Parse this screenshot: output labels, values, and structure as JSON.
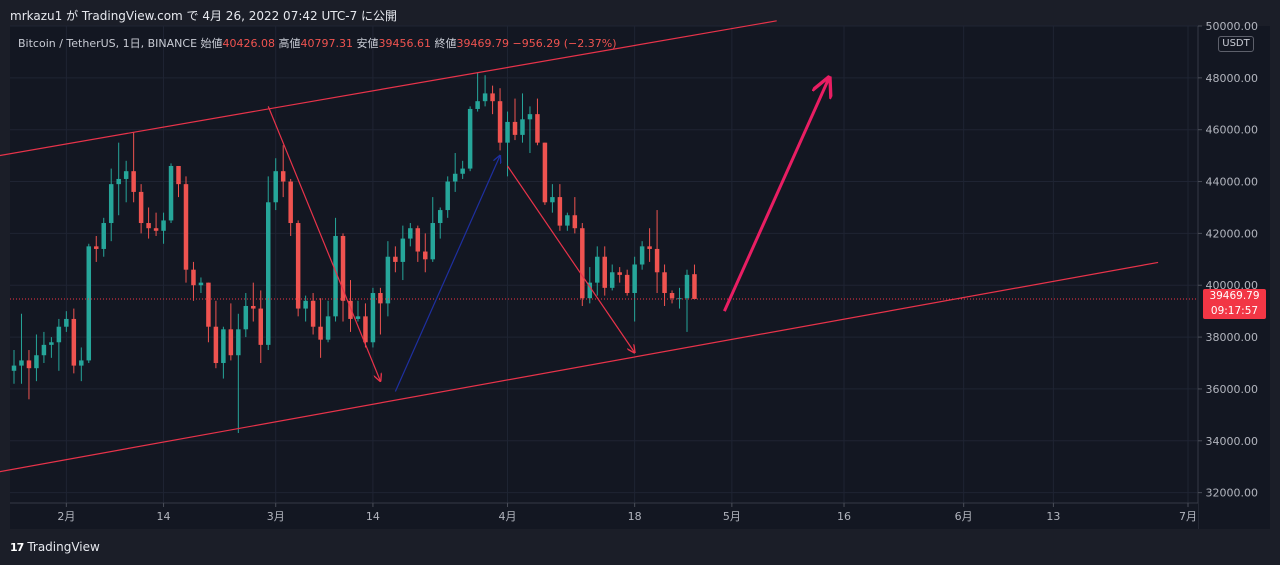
{
  "header": {
    "published_by": "mrkazu1 が TradingView.com で 4月 26, 2022 07:42 UTC-7 に公開"
  },
  "legend": {
    "symbol": "Bitcoin / TetherUS, 1日, BINANCE",
    "open_label": "始値",
    "open_value": "40426.08",
    "high_label": "高値",
    "high_value": "40797.31",
    "low_label": "安値",
    "low_value": "39456.61",
    "close_label": "終値",
    "close_value": "39469.79",
    "change": "−956.29 (−2.37%)"
  },
  "axis": {
    "unit": "USDT",
    "last_price": "39469.79",
    "countdown": "09:17:57"
  },
  "footer": {
    "brand": "TradingView",
    "logo_glyph": "17"
  },
  "colors": {
    "up": "#26a69a",
    "down": "#ef5350",
    "channel": "#e8334a",
    "blue_arrow": "#1e2fa0",
    "big_arrow": "#e91e63",
    "price_label": "#f23645"
  },
  "chart_data": {
    "type": "candlestick",
    "x_start": "2022-01-25",
    "x_end": "2022-07-01",
    "ylim": [
      31600,
      50000
    ],
    "y_ticks": [
      "32000.00",
      "34000.00",
      "36000.00",
      "38000.00",
      "40000.00",
      "42000.00",
      "44000.00",
      "46000.00",
      "48000.00",
      "50000.00"
    ],
    "x_ticks": [
      {
        "date": "2022-02-01",
        "label": "2月"
      },
      {
        "date": "2022-02-14",
        "label": "14"
      },
      {
        "date": "2022-03-01",
        "label": "3月"
      },
      {
        "date": "2022-03-14",
        "label": "14"
      },
      {
        "date": "2022-04-01",
        "label": "4月"
      },
      {
        "date": "2022-04-18",
        "label": "18"
      },
      {
        "date": "2022-05-01",
        "label": "5月"
      },
      {
        "date": "2022-05-16",
        "label": "16"
      },
      {
        "date": "2022-06-01",
        "label": "6月"
      },
      {
        "date": "2022-06-13",
        "label": "13"
      },
      {
        "date": "2022-07-01",
        "label": "7月"
      }
    ],
    "candles": [
      {
        "d": "2022-01-25",
        "o": 36700,
        "h": 37500,
        "l": 36200,
        "c": 36900
      },
      {
        "d": "2022-01-26",
        "o": 36900,
        "h": 38900,
        "l": 36200,
        "c": 37100
      },
      {
        "d": "2022-01-27",
        "o": 37100,
        "h": 37500,
        "l": 35600,
        "c": 36800
      },
      {
        "d": "2022-01-28",
        "o": 36800,
        "h": 38100,
        "l": 36300,
        "c": 37300
      },
      {
        "d": "2022-01-29",
        "o": 37300,
        "h": 38200,
        "l": 37000,
        "c": 37700
      },
      {
        "d": "2022-01-30",
        "o": 37700,
        "h": 38000,
        "l": 37200,
        "c": 37800
      },
      {
        "d": "2022-01-31",
        "o": 37800,
        "h": 38700,
        "l": 36700,
        "c": 38400
      },
      {
        "d": "2022-02-01",
        "o": 38400,
        "h": 39000,
        "l": 38200,
        "c": 38700
      },
      {
        "d": "2022-02-02",
        "o": 38700,
        "h": 39100,
        "l": 36600,
        "c": 36900
      },
      {
        "d": "2022-02-03",
        "o": 36900,
        "h": 37600,
        "l": 36300,
        "c": 37100
      },
      {
        "d": "2022-02-04",
        "o": 37100,
        "h": 41600,
        "l": 37000,
        "c": 41500
      },
      {
        "d": "2022-02-05",
        "o": 41500,
        "h": 41900,
        "l": 40900,
        "c": 41400
      },
      {
        "d": "2022-02-06",
        "o": 41400,
        "h": 42600,
        "l": 41100,
        "c": 42400
      },
      {
        "d": "2022-02-07",
        "o": 42400,
        "h": 44500,
        "l": 41700,
        "c": 43900
      },
      {
        "d": "2022-02-08",
        "o": 43900,
        "h": 45500,
        "l": 42700,
        "c": 44100
      },
      {
        "d": "2022-02-09",
        "o": 44100,
        "h": 44800,
        "l": 43200,
        "c": 44400
      },
      {
        "d": "2022-02-10",
        "o": 44400,
        "h": 45900,
        "l": 43200,
        "c": 43600
      },
      {
        "d": "2022-02-11",
        "o": 43600,
        "h": 43900,
        "l": 42000,
        "c": 42400
      },
      {
        "d": "2022-02-12",
        "o": 42400,
        "h": 43000,
        "l": 41800,
        "c": 42200
      },
      {
        "d": "2022-02-13",
        "o": 42200,
        "h": 42800,
        "l": 41900,
        "c": 42100
      },
      {
        "d": "2022-02-14",
        "o": 42100,
        "h": 42800,
        "l": 41600,
        "c": 42500
      },
      {
        "d": "2022-02-15",
        "o": 42500,
        "h": 44700,
        "l": 42400,
        "c": 44600
      },
      {
        "d": "2022-02-16",
        "o": 44600,
        "h": 44600,
        "l": 43400,
        "c": 43900
      },
      {
        "d": "2022-02-17",
        "o": 43900,
        "h": 44200,
        "l": 40100,
        "c": 40600
      },
      {
        "d": "2022-02-18",
        "o": 40600,
        "h": 40900,
        "l": 39400,
        "c": 40000
      },
      {
        "d": "2022-02-19",
        "o": 40000,
        "h": 40300,
        "l": 39700,
        "c": 40100
      },
      {
        "d": "2022-02-20",
        "o": 40100,
        "h": 40100,
        "l": 37800,
        "c": 38400
      },
      {
        "d": "2022-02-21",
        "o": 38400,
        "h": 39400,
        "l": 36800,
        "c": 37000
      },
      {
        "d": "2022-02-22",
        "o": 37000,
        "h": 38400,
        "l": 36400,
        "c": 38300
      },
      {
        "d": "2022-02-23",
        "o": 38300,
        "h": 39300,
        "l": 37100,
        "c": 37300
      },
      {
        "d": "2022-02-24",
        "o": 37300,
        "h": 38900,
        "l": 34300,
        "c": 38300
      },
      {
        "d": "2022-02-25",
        "o": 38300,
        "h": 39700,
        "l": 38000,
        "c": 39200
      },
      {
        "d": "2022-02-26",
        "o": 39200,
        "h": 40100,
        "l": 38600,
        "c": 39100
      },
      {
        "d": "2022-02-27",
        "o": 39100,
        "h": 39800,
        "l": 37000,
        "c": 37700
      },
      {
        "d": "2022-02-28",
        "o": 37700,
        "h": 44200,
        "l": 37500,
        "c": 43200
      },
      {
        "d": "2022-03-01",
        "o": 43200,
        "h": 44900,
        "l": 42900,
        "c": 44400
      },
      {
        "d": "2022-03-02",
        "o": 44400,
        "h": 45400,
        "l": 43400,
        "c": 44000
      },
      {
        "d": "2022-03-03",
        "o": 44000,
        "h": 44100,
        "l": 41900,
        "c": 42400
      },
      {
        "d": "2022-03-04",
        "o": 42400,
        "h": 42500,
        "l": 38800,
        "c": 39100
      },
      {
        "d": "2022-03-05",
        "o": 39100,
        "h": 39600,
        "l": 38600,
        "c": 39400
      },
      {
        "d": "2022-03-06",
        "o": 39400,
        "h": 39700,
        "l": 38100,
        "c": 38400
      },
      {
        "d": "2022-03-07",
        "o": 38400,
        "h": 39500,
        "l": 37200,
        "c": 37900
      },
      {
        "d": "2022-03-08",
        "o": 37900,
        "h": 39400,
        "l": 37800,
        "c": 38800
      },
      {
        "d": "2022-03-09",
        "o": 38800,
        "h": 42600,
        "l": 38600,
        "c": 41900
      },
      {
        "d": "2022-03-10",
        "o": 41900,
        "h": 42000,
        "l": 38600,
        "c": 39400
      },
      {
        "d": "2022-03-11",
        "o": 39400,
        "h": 40200,
        "l": 38200,
        "c": 38700
      },
      {
        "d": "2022-03-12",
        "o": 38700,
        "h": 39400,
        "l": 38600,
        "c": 38800
      },
      {
        "d": "2022-03-13",
        "o": 38800,
        "h": 39300,
        "l": 37600,
        "c": 37800
      },
      {
        "d": "2022-03-14",
        "o": 37800,
        "h": 39900,
        "l": 37600,
        "c": 39700
      },
      {
        "d": "2022-03-15",
        "o": 39700,
        "h": 39900,
        "l": 38100,
        "c": 39300
      },
      {
        "d": "2022-03-16",
        "o": 39300,
        "h": 41700,
        "l": 38800,
        "c": 41100
      },
      {
        "d": "2022-03-17",
        "o": 41100,
        "h": 41500,
        "l": 40500,
        "c": 40900
      },
      {
        "d": "2022-03-18",
        "o": 40900,
        "h": 42300,
        "l": 40200,
        "c": 41800
      },
      {
        "d": "2022-03-19",
        "o": 41800,
        "h": 42400,
        "l": 41500,
        "c": 42200
      },
      {
        "d": "2022-03-20",
        "o": 42200,
        "h": 42300,
        "l": 40900,
        "c": 41300
      },
      {
        "d": "2022-03-21",
        "o": 41300,
        "h": 42000,
        "l": 40500,
        "c": 41000
      },
      {
        "d": "2022-03-22",
        "o": 41000,
        "h": 43400,
        "l": 40900,
        "c": 42400
      },
      {
        "d": "2022-03-23",
        "o": 42400,
        "h": 43000,
        "l": 41800,
        "c": 42900
      },
      {
        "d": "2022-03-24",
        "o": 42900,
        "h": 44200,
        "l": 42600,
        "c": 44000
      },
      {
        "d": "2022-03-25",
        "o": 44000,
        "h": 45100,
        "l": 43600,
        "c": 44300
      },
      {
        "d": "2022-03-26",
        "o": 44300,
        "h": 44800,
        "l": 44100,
        "c": 44500
      },
      {
        "d": "2022-03-27",
        "o": 44500,
        "h": 46900,
        "l": 44400,
        "c": 46800
      },
      {
        "d": "2022-03-28",
        "o": 46800,
        "h": 48200,
        "l": 46700,
        "c": 47100
      },
      {
        "d": "2022-03-29",
        "o": 47100,
        "h": 48100,
        "l": 46900,
        "c": 47400
      },
      {
        "d": "2022-03-30",
        "o": 47400,
        "h": 47700,
        "l": 46600,
        "c": 47100
      },
      {
        "d": "2022-03-31",
        "o": 47100,
        "h": 47600,
        "l": 45200,
        "c": 45500
      },
      {
        "d": "2022-04-01",
        "o": 45500,
        "h": 46700,
        "l": 44200,
        "c": 46300
      },
      {
        "d": "2022-04-02",
        "o": 46300,
        "h": 47200,
        "l": 45600,
        "c": 45800
      },
      {
        "d": "2022-04-03",
        "o": 45800,
        "h": 47400,
        "l": 45500,
        "c": 46400
      },
      {
        "d": "2022-04-04",
        "o": 46400,
        "h": 46900,
        "l": 45100,
        "c": 46600
      },
      {
        "d": "2022-04-05",
        "o": 46600,
        "h": 47200,
        "l": 45400,
        "c": 45500
      },
      {
        "d": "2022-04-06",
        "o": 45500,
        "h": 45500,
        "l": 43100,
        "c": 43200
      },
      {
        "d": "2022-04-07",
        "o": 43200,
        "h": 43900,
        "l": 42800,
        "c": 43400
      },
      {
        "d": "2022-04-08",
        "o": 43400,
        "h": 43900,
        "l": 42100,
        "c": 42300
      },
      {
        "d": "2022-04-09",
        "o": 42300,
        "h": 42800,
        "l": 42100,
        "c": 42700
      },
      {
        "d": "2022-04-10",
        "o": 42700,
        "h": 43400,
        "l": 42000,
        "c": 42200
      },
      {
        "d": "2022-04-11",
        "o": 42200,
        "h": 42400,
        "l": 39200,
        "c": 39500
      },
      {
        "d": "2022-04-12",
        "o": 39500,
        "h": 40700,
        "l": 39300,
        "c": 40100
      },
      {
        "d": "2022-04-13",
        "o": 40100,
        "h": 41500,
        "l": 39600,
        "c": 41100
      },
      {
        "d": "2022-04-14",
        "o": 41100,
        "h": 41500,
        "l": 39600,
        "c": 39900
      },
      {
        "d": "2022-04-15",
        "o": 39900,
        "h": 40800,
        "l": 39800,
        "c": 40500
      },
      {
        "d": "2022-04-16",
        "o": 40500,
        "h": 40700,
        "l": 40100,
        "c": 40400
      },
      {
        "d": "2022-04-17",
        "o": 40400,
        "h": 40600,
        "l": 39600,
        "c": 39700
      },
      {
        "d": "2022-04-18",
        "o": 39700,
        "h": 41100,
        "l": 38600,
        "c": 40800
      },
      {
        "d": "2022-04-19",
        "o": 40800,
        "h": 41700,
        "l": 40600,
        "c": 41500
      },
      {
        "d": "2022-04-20",
        "o": 41500,
        "h": 42200,
        "l": 40900,
        "c": 41400
      },
      {
        "d": "2022-04-21",
        "o": 41400,
        "h": 42900,
        "l": 39700,
        "c": 40500
      },
      {
        "d": "2022-04-22",
        "o": 40500,
        "h": 40800,
        "l": 39200,
        "c": 39700
      },
      {
        "d": "2022-04-23",
        "o": 39700,
        "h": 39800,
        "l": 39300,
        "c": 39500
      },
      {
        "d": "2022-04-24",
        "o": 39500,
        "h": 39900,
        "l": 39100,
        "c": 39500
      },
      {
        "d": "2022-04-25",
        "o": 39500,
        "h": 40600,
        "l": 38200,
        "c": 40400
      },
      {
        "d": "2022-04-26",
        "o": 40426.08,
        "h": 40797.31,
        "l": 39456.61,
        "c": 39469.79
      }
    ],
    "drawings": [
      {
        "kind": "channel-line",
        "from": {
          "d": "2022-01-21",
          "p": 44900
        },
        "to": {
          "d": "2022-05-07",
          "p": 50200
        }
      },
      {
        "kind": "channel-line",
        "from": {
          "d": "2022-01-21",
          "p": 32700
        },
        "to": {
          "d": "2022-06-27",
          "p": 40880
        }
      },
      {
        "kind": "arrow",
        "color": "channel",
        "from": {
          "d": "2022-02-28",
          "p": 46900
        },
        "to": {
          "d": "2022-03-15",
          "p": 36300
        }
      },
      {
        "kind": "arrow",
        "color": "blue_arrow",
        "from": {
          "d": "2022-03-17",
          "p": 35900
        },
        "to": {
          "d": "2022-03-31",
          "p": 45000
        }
      },
      {
        "kind": "arrow",
        "color": "channel",
        "from": {
          "d": "2022-04-01",
          "p": 44600
        },
        "to": {
          "d": "2022-04-18",
          "p": 37400
        }
      },
      {
        "kind": "arrow",
        "color": "big_arrow",
        "from": {
          "d": "2022-04-30",
          "p": 39000
        },
        "to": {
          "d": "2022-05-14",
          "p": 48000
        }
      }
    ]
  }
}
